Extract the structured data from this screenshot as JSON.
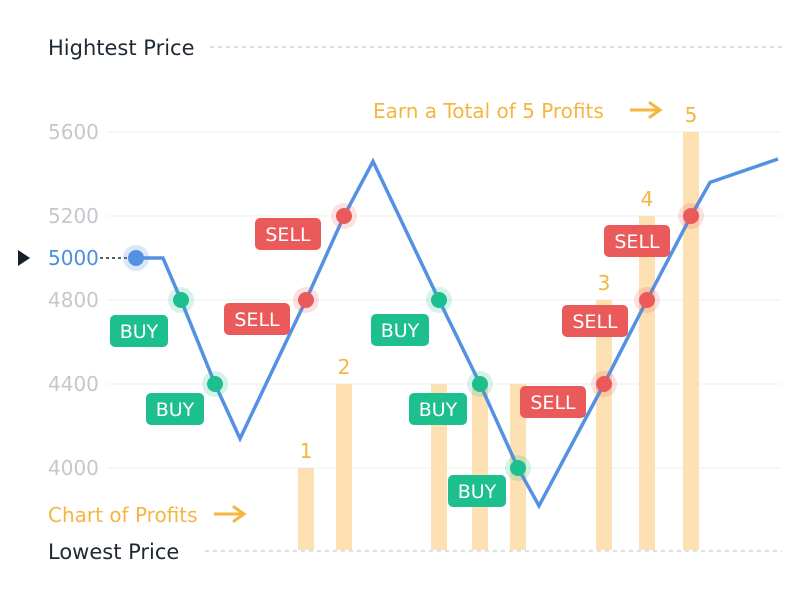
{
  "labels": {
    "highest": "Hightest Price",
    "lowest": "Lowest Price"
  },
  "colors": {
    "line": "#5591e3",
    "buy": "#1dbf8e",
    "sell": "#ea5a5a",
    "profit_bar": "#fde1b3",
    "profit_text": "#f5b540",
    "axis_text": "#c4c8cc",
    "current_price": "#4e8ddf",
    "dashed": "#d1d5d8",
    "grid": "#eef0f2"
  },
  "chart_data": {
    "type": "line",
    "y_ticks": [
      4000,
      4400,
      4800,
      5200,
      5600
    ],
    "current_price": {
      "label": "5000",
      "value": 5000
    },
    "price_line": {
      "x": [
        0,
        1,
        2,
        3,
        4,
        5,
        6,
        7,
        8,
        9,
        10,
        11,
        12,
        13,
        14,
        15
      ],
      "y": [
        5000,
        5000,
        4800,
        4400,
        4140,
        4800,
        5200,
        5460,
        4800,
        4400,
        4000,
        3820,
        4400,
        4800,
        5200,
        5360
      ]
    },
    "markers": [
      {
        "x": 0,
        "y": 5000,
        "type": "start",
        "label": ""
      },
      {
        "x": 2,
        "y": 4800,
        "type": "buy",
        "label": "BUY"
      },
      {
        "x": 3,
        "y": 4400,
        "type": "buy",
        "label": "BUY"
      },
      {
        "x": 5,
        "y": 4800,
        "type": "sell",
        "label": "SELL"
      },
      {
        "x": 6,
        "y": 5200,
        "type": "sell",
        "label": "SELL"
      },
      {
        "x": 8,
        "y": 4800,
        "type": "buy",
        "label": "BUY"
      },
      {
        "x": 9,
        "y": 4400,
        "type": "buy",
        "label": "BUY"
      },
      {
        "x": 10,
        "y": 4000,
        "type": "buy",
        "label": "BUY"
      },
      {
        "x": 12,
        "y": 4400,
        "type": "sell",
        "label": "SELL"
      },
      {
        "x": 13,
        "y": 4800,
        "type": "sell",
        "label": "SELL"
      },
      {
        "x": 14,
        "y": 5200,
        "type": "sell",
        "label": "SELL"
      }
    ],
    "profit_bars": [
      {
        "x": 5,
        "top": 4000,
        "label": "1"
      },
      {
        "x": 6,
        "top": 4400,
        "label": "2"
      },
      {
        "x": 8,
        "top": 4400,
        "label": ""
      },
      {
        "x": 9,
        "top": 4400,
        "label": ""
      },
      {
        "x": 10,
        "top": 4400,
        "label": ""
      },
      {
        "x": 12,
        "top": 4800,
        "label": "3"
      },
      {
        "x": 13,
        "top": 5200,
        "label": "4"
      },
      {
        "x": 14,
        "top": 5600,
        "label": "5"
      }
    ],
    "annotations": {
      "profits_chart": "Chart of Profits",
      "total_profits": "Earn a Total of 5 Profits"
    }
  }
}
